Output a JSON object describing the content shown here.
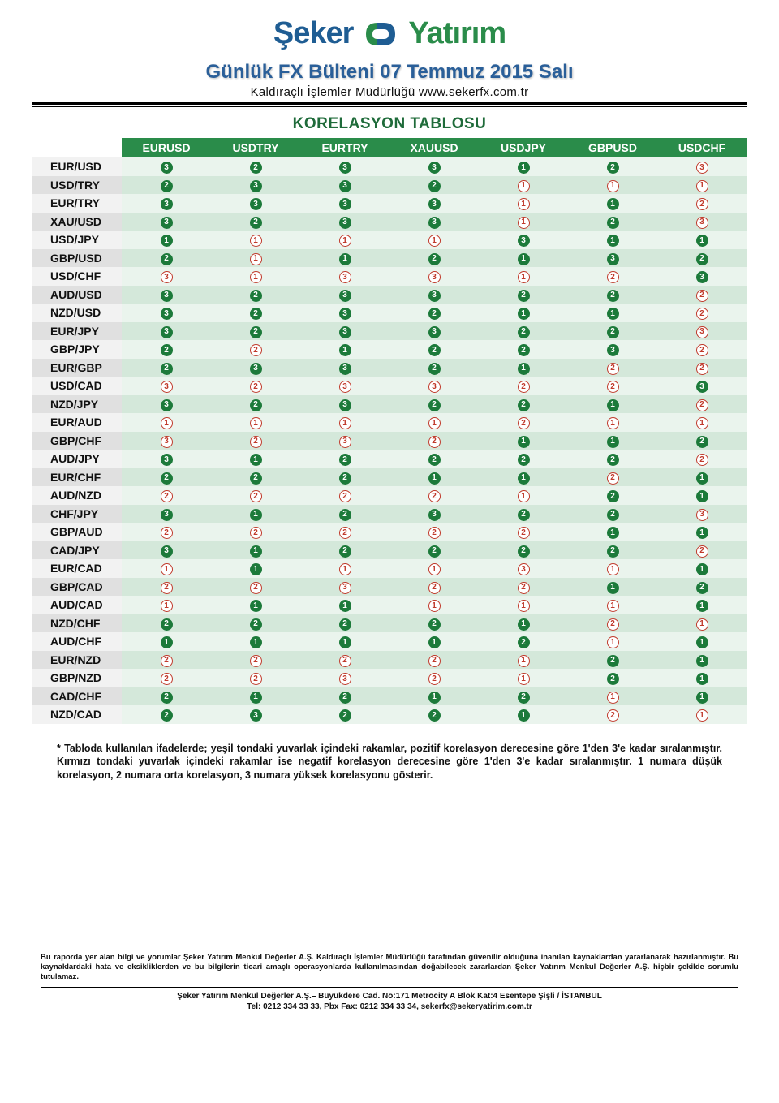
{
  "logo": {
    "part1": "Şeker",
    "part2": "Yatırım",
    "color_blue": "#1f5d93",
    "color_green": "#2a8c4a"
  },
  "title": "Günlük FX Bülteni  07 Temmuz 2015 Salı",
  "subtitle": "Kaldıraçlı İşlemler Müdürlüğü www.sekerfx.com.tr",
  "table_title": "KORELASYON TABLOSU",
  "columns": [
    "EURUSD",
    "USDTRY",
    "EURTRY",
    "XAUUSD",
    "USDJPY",
    "GBPUSD",
    "USDCHF"
  ],
  "row_labels": [
    "EUR/USD",
    "USD/TRY",
    "EUR/TRY",
    "XAU/USD",
    "USD/JPY",
    "GBP/USD",
    "USD/CHF",
    "AUD/USD",
    "NZD/USD",
    "EUR/JPY",
    "GBP/JPY",
    "EUR/GBP",
    "USD/CAD",
    "NZD/JPY",
    "EUR/AUD",
    "GBP/CHF",
    "AUD/JPY",
    "EUR/CHF",
    "AUD/NZD",
    "CHF/JPY",
    "GBP/AUD",
    "CAD/JPY",
    "EUR/CAD",
    "GBP/CAD",
    "AUD/CAD",
    "NZD/CHF",
    "AUD/CHF",
    "EUR/NZD",
    "GBP/NZD",
    "CAD/CHF",
    "NZD/CAD"
  ],
  "cells": [
    [
      {
        "v": 3,
        "s": "p"
      },
      {
        "v": 2,
        "s": "p"
      },
      {
        "v": 3,
        "s": "p"
      },
      {
        "v": 3,
        "s": "p"
      },
      {
        "v": 1,
        "s": "p"
      },
      {
        "v": 2,
        "s": "p"
      },
      {
        "v": 3,
        "s": "n"
      }
    ],
    [
      {
        "v": 2,
        "s": "p"
      },
      {
        "v": 3,
        "s": "p"
      },
      {
        "v": 3,
        "s": "p"
      },
      {
        "v": 2,
        "s": "p"
      },
      {
        "v": 1,
        "s": "n"
      },
      {
        "v": 1,
        "s": "n"
      },
      {
        "v": 1,
        "s": "n"
      }
    ],
    [
      {
        "v": 3,
        "s": "p"
      },
      {
        "v": 3,
        "s": "p"
      },
      {
        "v": 3,
        "s": "p"
      },
      {
        "v": 3,
        "s": "p"
      },
      {
        "v": 1,
        "s": "n"
      },
      {
        "v": 1,
        "s": "p"
      },
      {
        "v": 2,
        "s": "n"
      }
    ],
    [
      {
        "v": 3,
        "s": "p"
      },
      {
        "v": 2,
        "s": "p"
      },
      {
        "v": 3,
        "s": "p"
      },
      {
        "v": 3,
        "s": "p"
      },
      {
        "v": 1,
        "s": "n"
      },
      {
        "v": 2,
        "s": "p"
      },
      {
        "v": 3,
        "s": "n"
      }
    ],
    [
      {
        "v": 1,
        "s": "p"
      },
      {
        "v": 1,
        "s": "n"
      },
      {
        "v": 1,
        "s": "n"
      },
      {
        "v": 1,
        "s": "n"
      },
      {
        "v": 3,
        "s": "p"
      },
      {
        "v": 1,
        "s": "p"
      },
      {
        "v": 1,
        "s": "p"
      }
    ],
    [
      {
        "v": 2,
        "s": "p"
      },
      {
        "v": 1,
        "s": "n"
      },
      {
        "v": 1,
        "s": "p"
      },
      {
        "v": 2,
        "s": "p"
      },
      {
        "v": 1,
        "s": "p"
      },
      {
        "v": 3,
        "s": "p"
      },
      {
        "v": 2,
        "s": "p"
      }
    ],
    [
      {
        "v": 3,
        "s": "n"
      },
      {
        "v": 1,
        "s": "n"
      },
      {
        "v": 3,
        "s": "n"
      },
      {
        "v": 3,
        "s": "n"
      },
      {
        "v": 1,
        "s": "n"
      },
      {
        "v": 2,
        "s": "n"
      },
      {
        "v": 3,
        "s": "p"
      }
    ],
    [
      {
        "v": 3,
        "s": "p"
      },
      {
        "v": 2,
        "s": "p"
      },
      {
        "v": 3,
        "s": "p"
      },
      {
        "v": 3,
        "s": "p"
      },
      {
        "v": 2,
        "s": "p"
      },
      {
        "v": 2,
        "s": "p"
      },
      {
        "v": 2,
        "s": "n"
      }
    ],
    [
      {
        "v": 3,
        "s": "p"
      },
      {
        "v": 2,
        "s": "p"
      },
      {
        "v": 3,
        "s": "p"
      },
      {
        "v": 2,
        "s": "p"
      },
      {
        "v": 1,
        "s": "p"
      },
      {
        "v": 1,
        "s": "p"
      },
      {
        "v": 2,
        "s": "n"
      }
    ],
    [
      {
        "v": 3,
        "s": "p"
      },
      {
        "v": 2,
        "s": "p"
      },
      {
        "v": 3,
        "s": "p"
      },
      {
        "v": 3,
        "s": "p"
      },
      {
        "v": 2,
        "s": "p"
      },
      {
        "v": 2,
        "s": "p"
      },
      {
        "v": 3,
        "s": "n"
      }
    ],
    [
      {
        "v": 2,
        "s": "p"
      },
      {
        "v": 2,
        "s": "n"
      },
      {
        "v": 1,
        "s": "p"
      },
      {
        "v": 2,
        "s": "p"
      },
      {
        "v": 2,
        "s": "p"
      },
      {
        "v": 3,
        "s": "p"
      },
      {
        "v": 2,
        "s": "n"
      }
    ],
    [
      {
        "v": 2,
        "s": "p"
      },
      {
        "v": 3,
        "s": "p"
      },
      {
        "v": 3,
        "s": "p"
      },
      {
        "v": 2,
        "s": "p"
      },
      {
        "v": 1,
        "s": "p"
      },
      {
        "v": 2,
        "s": "n"
      },
      {
        "v": 2,
        "s": "n"
      }
    ],
    [
      {
        "v": 3,
        "s": "n"
      },
      {
        "v": 2,
        "s": "n"
      },
      {
        "v": 3,
        "s": "n"
      },
      {
        "v": 3,
        "s": "n"
      },
      {
        "v": 2,
        "s": "n"
      },
      {
        "v": 2,
        "s": "n"
      },
      {
        "v": 3,
        "s": "p"
      }
    ],
    [
      {
        "v": 3,
        "s": "p"
      },
      {
        "v": 2,
        "s": "p"
      },
      {
        "v": 3,
        "s": "p"
      },
      {
        "v": 2,
        "s": "p"
      },
      {
        "v": 2,
        "s": "p"
      },
      {
        "v": 1,
        "s": "p"
      },
      {
        "v": 2,
        "s": "n"
      }
    ],
    [
      {
        "v": 1,
        "s": "n"
      },
      {
        "v": 1,
        "s": "n"
      },
      {
        "v": 1,
        "s": "n"
      },
      {
        "v": 1,
        "s": "n"
      },
      {
        "v": 2,
        "s": "n"
      },
      {
        "v": 1,
        "s": "n"
      },
      {
        "v": 1,
        "s": "n"
      }
    ],
    [
      {
        "v": 3,
        "s": "n"
      },
      {
        "v": 2,
        "s": "n"
      },
      {
        "v": 3,
        "s": "n"
      },
      {
        "v": 2,
        "s": "n"
      },
      {
        "v": 1,
        "s": "p"
      },
      {
        "v": 1,
        "s": "p"
      },
      {
        "v": 2,
        "s": "p"
      }
    ],
    [
      {
        "v": 3,
        "s": "p"
      },
      {
        "v": 1,
        "s": "p"
      },
      {
        "v": 2,
        "s": "p"
      },
      {
        "v": 2,
        "s": "p"
      },
      {
        "v": 2,
        "s": "p"
      },
      {
        "v": 2,
        "s": "p"
      },
      {
        "v": 2,
        "s": "n"
      }
    ],
    [
      {
        "v": 2,
        "s": "p"
      },
      {
        "v": 2,
        "s": "p"
      },
      {
        "v": 2,
        "s": "p"
      },
      {
        "v": 1,
        "s": "p"
      },
      {
        "v": 1,
        "s": "p"
      },
      {
        "v": 2,
        "s": "n"
      },
      {
        "v": 1,
        "s": "p"
      }
    ],
    [
      {
        "v": 2,
        "s": "n"
      },
      {
        "v": 2,
        "s": "n"
      },
      {
        "v": 2,
        "s": "n"
      },
      {
        "v": 2,
        "s": "n"
      },
      {
        "v": 1,
        "s": "n"
      },
      {
        "v": 2,
        "s": "p"
      },
      {
        "v": 1,
        "s": "p"
      }
    ],
    [
      {
        "v": 3,
        "s": "p"
      },
      {
        "v": 1,
        "s": "p"
      },
      {
        "v": 2,
        "s": "p"
      },
      {
        "v": 3,
        "s": "p"
      },
      {
        "v": 2,
        "s": "p"
      },
      {
        "v": 2,
        "s": "p"
      },
      {
        "v": 3,
        "s": "n"
      }
    ],
    [
      {
        "v": 2,
        "s": "n"
      },
      {
        "v": 2,
        "s": "n"
      },
      {
        "v": 2,
        "s": "n"
      },
      {
        "v": 2,
        "s": "n"
      },
      {
        "v": 2,
        "s": "n"
      },
      {
        "v": 1,
        "s": "p"
      },
      {
        "v": 1,
        "s": "p"
      }
    ],
    [
      {
        "v": 3,
        "s": "p"
      },
      {
        "v": 1,
        "s": "p"
      },
      {
        "v": 2,
        "s": "p"
      },
      {
        "v": 2,
        "s": "p"
      },
      {
        "v": 2,
        "s": "p"
      },
      {
        "v": 2,
        "s": "p"
      },
      {
        "v": 2,
        "s": "n"
      }
    ],
    [
      {
        "v": 1,
        "s": "n"
      },
      {
        "v": 1,
        "s": "p"
      },
      {
        "v": 1,
        "s": "n"
      },
      {
        "v": 1,
        "s": "n"
      },
      {
        "v": 3,
        "s": "n"
      },
      {
        "v": 1,
        "s": "n"
      },
      {
        "v": 1,
        "s": "p"
      }
    ],
    [
      {
        "v": 2,
        "s": "n"
      },
      {
        "v": 2,
        "s": "n"
      },
      {
        "v": 3,
        "s": "n"
      },
      {
        "v": 2,
        "s": "n"
      },
      {
        "v": 2,
        "s": "n"
      },
      {
        "v": 1,
        "s": "p"
      },
      {
        "v": 2,
        "s": "p"
      }
    ],
    [
      {
        "v": 1,
        "s": "n"
      },
      {
        "v": 1,
        "s": "p"
      },
      {
        "v": 1,
        "s": "p"
      },
      {
        "v": 1,
        "s": "n"
      },
      {
        "v": 1,
        "s": "n"
      },
      {
        "v": 1,
        "s": "n"
      },
      {
        "v": 1,
        "s": "p"
      }
    ],
    [
      {
        "v": 2,
        "s": "p"
      },
      {
        "v": 2,
        "s": "p"
      },
      {
        "v": 2,
        "s": "p"
      },
      {
        "v": 2,
        "s": "p"
      },
      {
        "v": 1,
        "s": "p"
      },
      {
        "v": 2,
        "s": "n"
      },
      {
        "v": 1,
        "s": "n"
      }
    ],
    [
      {
        "v": 1,
        "s": "p"
      },
      {
        "v": 1,
        "s": "p"
      },
      {
        "v": 1,
        "s": "p"
      },
      {
        "v": 1,
        "s": "p"
      },
      {
        "v": 2,
        "s": "p"
      },
      {
        "v": 1,
        "s": "n"
      },
      {
        "v": 1,
        "s": "p"
      }
    ],
    [
      {
        "v": 2,
        "s": "n"
      },
      {
        "v": 2,
        "s": "n"
      },
      {
        "v": 2,
        "s": "n"
      },
      {
        "v": 2,
        "s": "n"
      },
      {
        "v": 1,
        "s": "n"
      },
      {
        "v": 2,
        "s": "p"
      },
      {
        "v": 1,
        "s": "p"
      }
    ],
    [
      {
        "v": 2,
        "s": "n"
      },
      {
        "v": 2,
        "s": "n"
      },
      {
        "v": 3,
        "s": "n"
      },
      {
        "v": 2,
        "s": "n"
      },
      {
        "v": 1,
        "s": "n"
      },
      {
        "v": 2,
        "s": "p"
      },
      {
        "v": 1,
        "s": "p"
      }
    ],
    [
      {
        "v": 2,
        "s": "p"
      },
      {
        "v": 1,
        "s": "p"
      },
      {
        "v": 2,
        "s": "p"
      },
      {
        "v": 1,
        "s": "p"
      },
      {
        "v": 2,
        "s": "p"
      },
      {
        "v": 1,
        "s": "n"
      },
      {
        "v": 1,
        "s": "p"
      }
    ],
    [
      {
        "v": 2,
        "s": "p"
      },
      {
        "v": 3,
        "s": "p"
      },
      {
        "v": 2,
        "s": "p"
      },
      {
        "v": 2,
        "s": "p"
      },
      {
        "v": 1,
        "s": "p"
      },
      {
        "v": 2,
        "s": "n"
      },
      {
        "v": 1,
        "s": "n"
      }
    ]
  ],
  "footnote": "* Tabloda kullanılan ifadelerde; yeşil tondaki yuvarlak içindeki rakamlar, pozitif korelasyon derecesine göre 1'den 3'e kadar sıralanmıştır. Kırmızı tondaki yuvarlak içindeki rakamlar ise negatif korelasyon derecesine göre 1'den 3'e kadar sıralanmıştır. 1 numara düşük korelasyon, 2 numara orta korelasyon, 3 numara yüksek korelasyonu gösterir.",
  "disclaimer": "Bu raporda yer alan bilgi ve yorumlar Şeker Yatırım Menkul Değerler A.Ş. Kaldıraçlı İşlemler Müdürlüğü tarafından güvenilir olduğuna inanılan kaynaklardan yararlanarak hazırlanmıştır. Bu kaynaklardaki hata ve eksikliklerden ve bu bilgilerin ticari amaçlı operasyonlarda kullanılmasından doğabilecek zararlardan Şeker Yatırım Menkul Değerler A.Ş. hiçbir şekilde sorumlu tutulamaz.",
  "address_line1": "Şeker Yatırım Menkul Değerler A.Ş.– Büyükdere Cad. No:171 Metrocity A Blok Kat:4 Esentepe Şişli / İSTANBUL",
  "address_line2": "Tel: 0212 334 33 33, Pbx Fax: 0212 334 33 34, sekerfx@sekeryatirim.com.tr",
  "style": {
    "header_bg": "#2a8c4a",
    "pos_color": "#1c7a3a",
    "neg_color": "#c0392b",
    "row_odd_label": "#f2f2f2",
    "row_even_label": "#e0e0e0",
    "row_odd_cell": "#eaf4ed",
    "row_even_cell": "#d4e8da",
    "title_color": "#2a5f99",
    "table_title_color": "#1f6b3a"
  }
}
